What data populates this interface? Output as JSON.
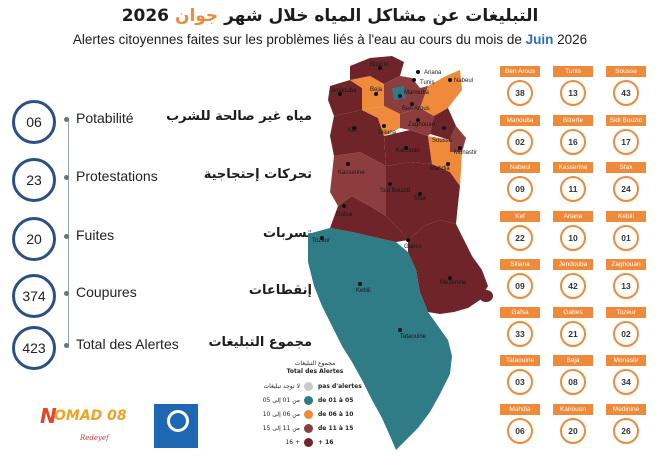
{
  "title_ar": {
    "before": "التبليغات عن مشاكل المياه خلال شهر ",
    "month": "جوان",
    "after": " 2026"
  },
  "title_fr": {
    "before": "Alertes citoyennes faites sur les problèmes liés à l'eau au cours du mois de ",
    "month": "Juin",
    "after": " 2026"
  },
  "metrics": [
    {
      "value": "06",
      "fr": "Potabilité",
      "ar": "مياه غير صالحة للشرب"
    },
    {
      "value": "23",
      "fr": "Protestations",
      "ar": "تحركات إحتجاجية"
    },
    {
      "value": "20",
      "fr": "Fuites",
      "ar": "تسربات"
    },
    {
      "value": "374",
      "fr": "Coupures",
      "ar": "إنقطاعات"
    },
    {
      "value": "423",
      "fr": "Total des Alertes",
      "ar": "مجموع التبليغات"
    }
  ],
  "colors": {
    "accent": "#ef8a3a",
    "none": "#c9c9c9",
    "c1": "#2f7b86",
    "c2": "#ef8a3a",
    "c3": "#8e3d3f",
    "c4": "#6e2428",
    "metric_border": "#2c4f86"
  },
  "legend": {
    "title_ar": "مجموع التبليغات",
    "title_fr": "Total des Alertes",
    "items": [
      {
        "fr": "pas d'alertes",
        "ar": "لا توجد تبليغات",
        "color": "#c9c9c9"
      },
      {
        "fr": "de 01 à 05",
        "ar": "من 01 إلى 05",
        "color": "#2f7b86"
      },
      {
        "fr": "de 06 à 10",
        "ar": "من 06 إلى 10",
        "color": "#ef8a3a"
      },
      {
        "fr": "de 11 à 15",
        "ar": "من 11 إلى 15",
        "color": "#8e3d3f"
      },
      {
        "fr": "+ 16",
        "ar": "+ 16",
        "color": "#6e2428"
      }
    ]
  },
  "governorates": [
    {
      "name": "Ben Arous",
      "value": "38"
    },
    {
      "name": "Tunis",
      "value": "13"
    },
    {
      "name": "Sousse",
      "value": "43"
    },
    {
      "name": "Manouba",
      "value": "02"
    },
    {
      "name": "Bizerte",
      "value": "16"
    },
    {
      "name": "Sidi Bouzid",
      "value": "17"
    },
    {
      "name": "Nabeul",
      "value": "09"
    },
    {
      "name": "Kasserine",
      "value": "11"
    },
    {
      "name": "Sfax",
      "value": "24"
    },
    {
      "name": "Kef",
      "value": "22"
    },
    {
      "name": "Ariana",
      "value": "10"
    },
    {
      "name": "Kebili",
      "value": "01"
    },
    {
      "name": "Siliana",
      "value": "09"
    },
    {
      "name": "Jendouba",
      "value": "42"
    },
    {
      "name": "Zaghouan",
      "value": "13"
    },
    {
      "name": "Gafsa",
      "value": "33"
    },
    {
      "name": "Gabes",
      "value": "21"
    },
    {
      "name": "Tozeur",
      "value": "02"
    },
    {
      "name": "Tataouine",
      "value": "03"
    },
    {
      "name": "Beja",
      "value": "08"
    },
    {
      "name": "Monastir",
      "value": "34"
    },
    {
      "name": "Mahdia",
      "value": "06"
    },
    {
      "name": "Kairouan",
      "value": "20"
    },
    {
      "name": "Medinine",
      "value": "26"
    }
  ],
  "map_labels": [
    {
      "text": "Bizerte"
    },
    {
      "text": "Ariana"
    },
    {
      "text": "Tunis"
    },
    {
      "text": "Nabeul"
    },
    {
      "text": "Jendouba"
    },
    {
      "text": "Beja"
    },
    {
      "text": "Manouba"
    },
    {
      "text": "Ben Arous"
    },
    {
      "text": "Zaghouan"
    },
    {
      "text": "Kef"
    },
    {
      "text": "Siliana"
    },
    {
      "text": "Sousse"
    },
    {
      "text": "Monastir"
    },
    {
      "text": "Kairouan"
    },
    {
      "text": "Mahdia"
    },
    {
      "text": "Kasserine"
    },
    {
      "text": "Sidi Bouzid"
    },
    {
      "text": "Sfax"
    },
    {
      "text": "Gafsa"
    },
    {
      "text": "Tozeur"
    },
    {
      "text": "Gabes"
    },
    {
      "text": "Kebili"
    },
    {
      "text": "Medenine"
    },
    {
      "text": "Tataouine"
    }
  ],
  "logos": {
    "nomad": "OMAD 08",
    "nomad_letter": "N",
    "nomad_sub": "Redeyef"
  }
}
